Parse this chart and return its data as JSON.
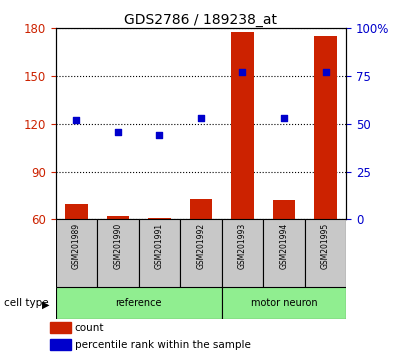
{
  "title": "GDS2786 / 189238_at",
  "samples": [
    "GSM201989",
    "GSM201990",
    "GSM201991",
    "GSM201992",
    "GSM201993",
    "GSM201994",
    "GSM201995"
  ],
  "groups": [
    "reference",
    "reference",
    "reference",
    "reference",
    "motor neuron",
    "motor neuron",
    "motor neuron"
  ],
  "count_values": [
    70,
    62,
    61,
    73,
    178,
    72,
    175
  ],
  "percentile_values": [
    52,
    46,
    44,
    53,
    77,
    53,
    77
  ],
  "ylim_left": [
    60,
    180
  ],
  "ylim_right": [
    0,
    100
  ],
  "yticks_left": [
    60,
    90,
    120,
    150,
    180
  ],
  "yticks_right": [
    0,
    25,
    50,
    75,
    100
  ],
  "ytick_labels_left": [
    "60",
    "90",
    "120",
    "150",
    "180"
  ],
  "ytick_labels_right": [
    "0",
    "25",
    "50",
    "75",
    "100%"
  ],
  "bar_color": "#CC2200",
  "dot_color": "#0000CC",
  "bar_bottom": 60,
  "legend_count_label": "count",
  "legend_percentile_label": "percentile rank within the sample",
  "cell_type_label": "cell type",
  "background_color": "#ffffff",
  "green_color": "#90EE90",
  "gray_color": "#C8C8C8",
  "xlabel_color": "#CC2200",
  "ylabel_right_color": "#0000CC"
}
